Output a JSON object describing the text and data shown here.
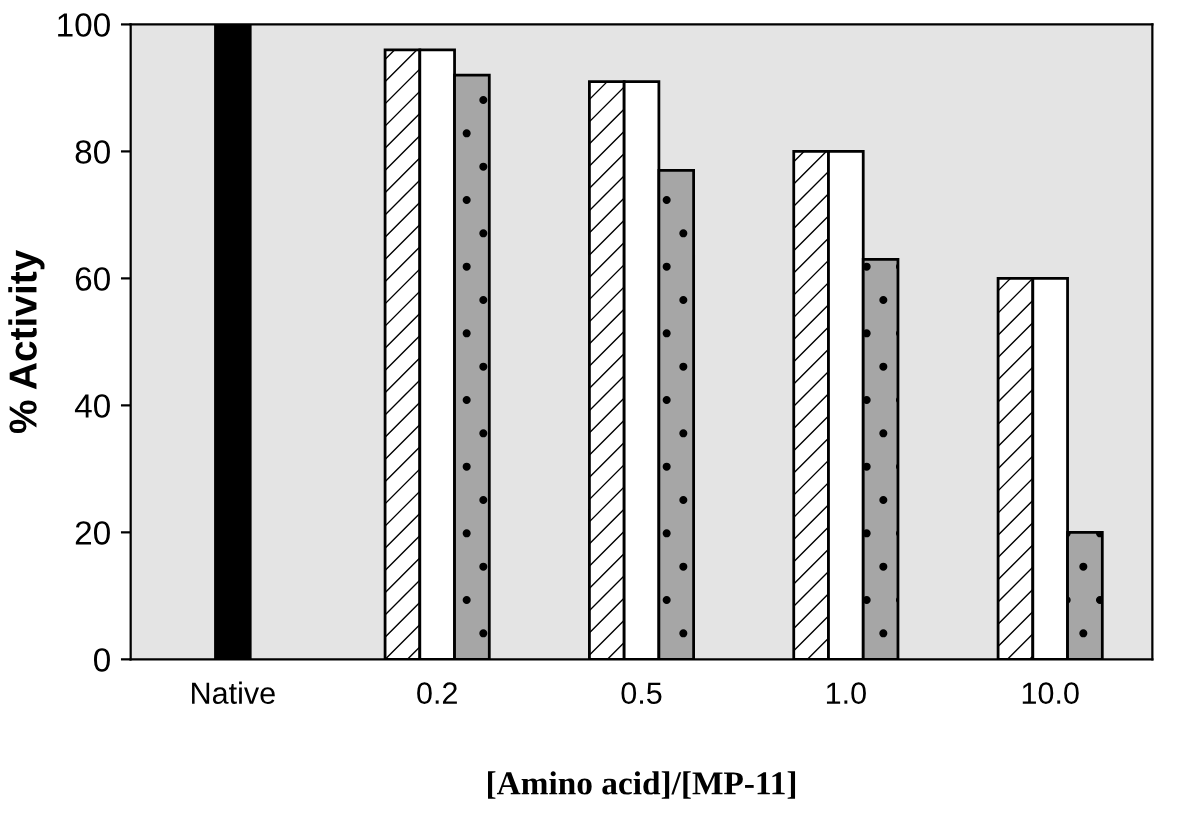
{
  "chart_data": {
    "type": "bar",
    "xlabel": "[Amino acid]/[MP-11]",
    "ylabel": "% Activity",
    "categories": [
      "Native",
      "0.2",
      "0.5",
      "1.0",
      "10.0"
    ],
    "series": [
      {
        "color": "#000000",
        "values": [
          100,
          null,
          null,
          null,
          null
        ]
      },
      {
        "color": "#ffffff",
        "values": [
          null,
          96,
          91,
          80,
          60
        ]
      },
      {
        "color": "#ffffff",
        "values": [
          null,
          96,
          91,
          80,
          60
        ]
      },
      {
        "color": "#a6a6a6",
        "values": [
          null,
          92,
          77,
          63,
          20
        ]
      }
    ],
    "ylim": [
      0,
      100
    ],
    "yticks": [
      0,
      20,
      40,
      60,
      80,
      100
    ],
    "grid": false,
    "legend": false
  }
}
